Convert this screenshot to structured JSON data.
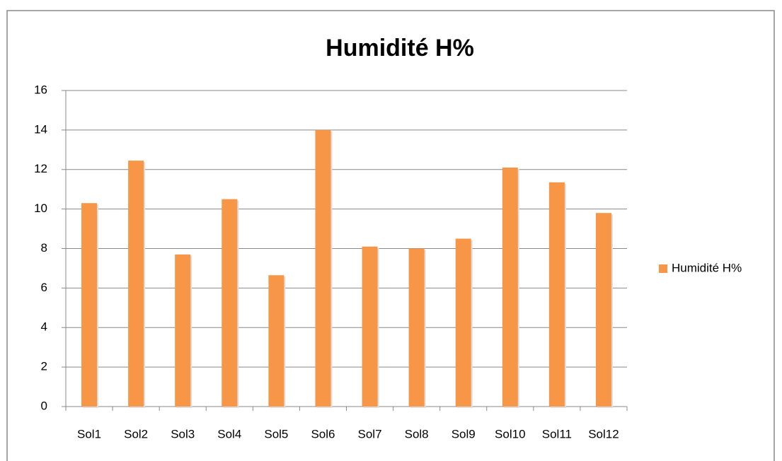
{
  "chart_data": {
    "type": "bar",
    "title": "Humidité H%",
    "categories": [
      "Sol1",
      "Sol2",
      "Sol3",
      "Sol4",
      "Sol5",
      "Sol6",
      "Sol7",
      "Sol8",
      "Sol9",
      "Sol10",
      "Sol11",
      "Sol12"
    ],
    "series": [
      {
        "name": "Humidité H%",
        "color": "#f79646",
        "values": [
          10.3,
          12.45,
          7.7,
          10.5,
          6.65,
          14.0,
          8.1,
          8.0,
          8.5,
          12.1,
          11.35,
          9.8
        ]
      }
    ],
    "ylim": [
      0,
      16
    ],
    "yticks": [
      0,
      2,
      4,
      6,
      8,
      10,
      12,
      14,
      16
    ],
    "grid": true,
    "legend": "right"
  }
}
